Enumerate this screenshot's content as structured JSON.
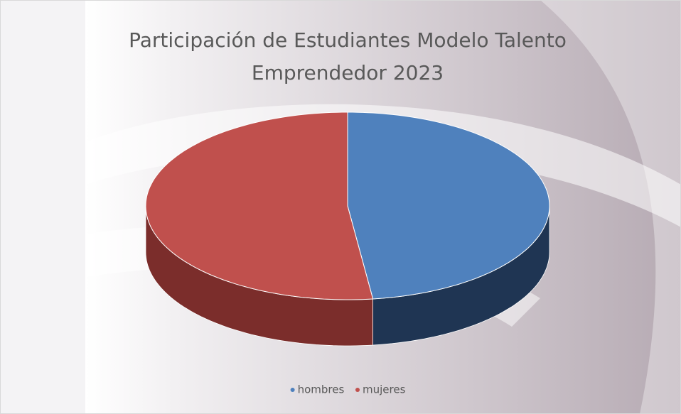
{
  "chart_data": {
    "type": "pie",
    "title": "Participación de Estudiantes Modelo Talento Emprendedor 2023",
    "categories": [
      "hombres",
      "mujeres"
    ],
    "values": [
      48,
      52
    ],
    "colors": [
      "#4f81bd",
      "#c0504d"
    ],
    "side_colors": [
      "#1f3553",
      "#7b2d2b"
    ],
    "legend": "bottom"
  }
}
